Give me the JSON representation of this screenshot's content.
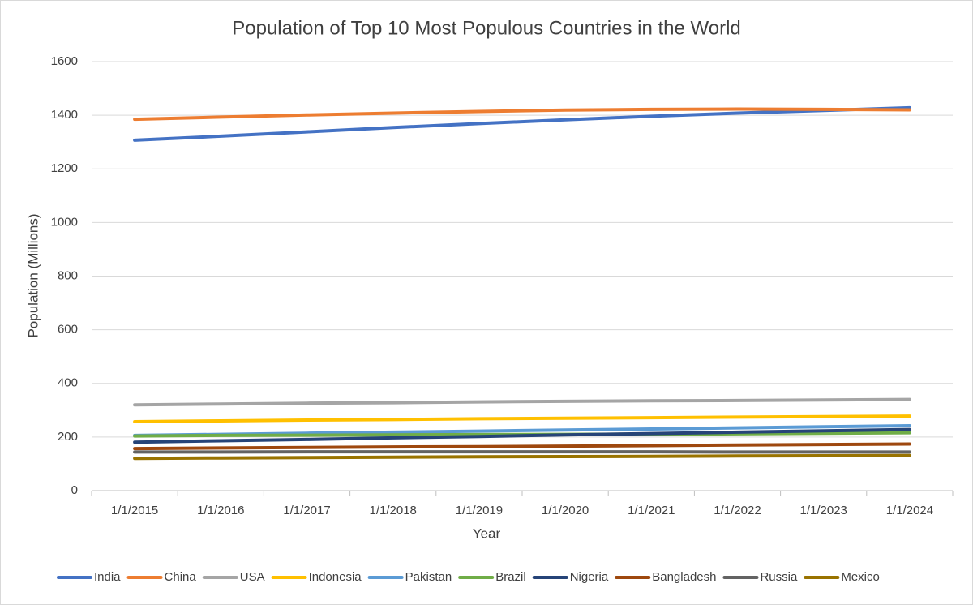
{
  "chart_data": {
    "type": "line",
    "title": "Population of Top 10 Most Populous Countries in the World",
    "x_label": "Year",
    "y_label": "Population (Millions)",
    "categories": [
      "1/1/2015",
      "1/1/2016",
      "1/1/2017",
      "1/1/2018",
      "1/1/2019",
      "1/1/2020",
      "1/1/2021",
      "1/1/2022",
      "1/1/2023",
      "1/1/2024"
    ],
    "ylim": [
      0,
      1600
    ],
    "yticks": [
      0,
      200,
      400,
      600,
      800,
      1000,
      1200,
      1400,
      1600
    ],
    "grid": true,
    "legend": "bottom",
    "series": [
      {
        "name": "India",
        "color": "#4472c4",
        "values": [
          1307,
          1322,
          1338,
          1354,
          1369,
          1383,
          1396,
          1408,
          1418,
          1428
        ]
      },
      {
        "name": "China",
        "color": "#ed7d31",
        "values": [
          1385,
          1393,
          1401,
          1408,
          1414,
          1419,
          1422,
          1423,
          1422,
          1420
        ]
      },
      {
        "name": "USA",
        "color": "#a5a5a5",
        "values": [
          320,
          323,
          326,
          328,
          331,
          333,
          335,
          336,
          338,
          340
        ]
      },
      {
        "name": "Indonesia",
        "color": "#ffc000",
        "values": [
          257,
          260,
          263,
          265,
          268,
          270,
          272,
          274,
          276,
          278
        ]
      },
      {
        "name": "Pakistan",
        "color": "#5b9bd5",
        "values": [
          206,
          210,
          214,
          218,
          222,
          226,
          230,
          234,
          238,
          242
        ]
      },
      {
        "name": "Brazil",
        "color": "#70ad47",
        "values": [
          204,
          206,
          207,
          208,
          209,
          210,
          211,
          212,
          214,
          216
        ]
      },
      {
        "name": "Nigeria",
        "color": "#264478",
        "values": [
          181,
          186,
          191,
          197,
          202,
          208,
          213,
          218,
          223,
          228
        ]
      },
      {
        "name": "Bangladesh",
        "color": "#9e480e",
        "values": [
          157,
          159,
          161,
          163,
          164,
          166,
          168,
          170,
          172,
          174
        ]
      },
      {
        "name": "Russia",
        "color": "#636363",
        "values": [
          144,
          144,
          145,
          145,
          145,
          145,
          145,
          144,
          144,
          144
        ]
      },
      {
        "name": "Mexico",
        "color": "#997300",
        "values": [
          120,
          122,
          123,
          125,
          126,
          127,
          128,
          129,
          130,
          131
        ]
      }
    ]
  }
}
